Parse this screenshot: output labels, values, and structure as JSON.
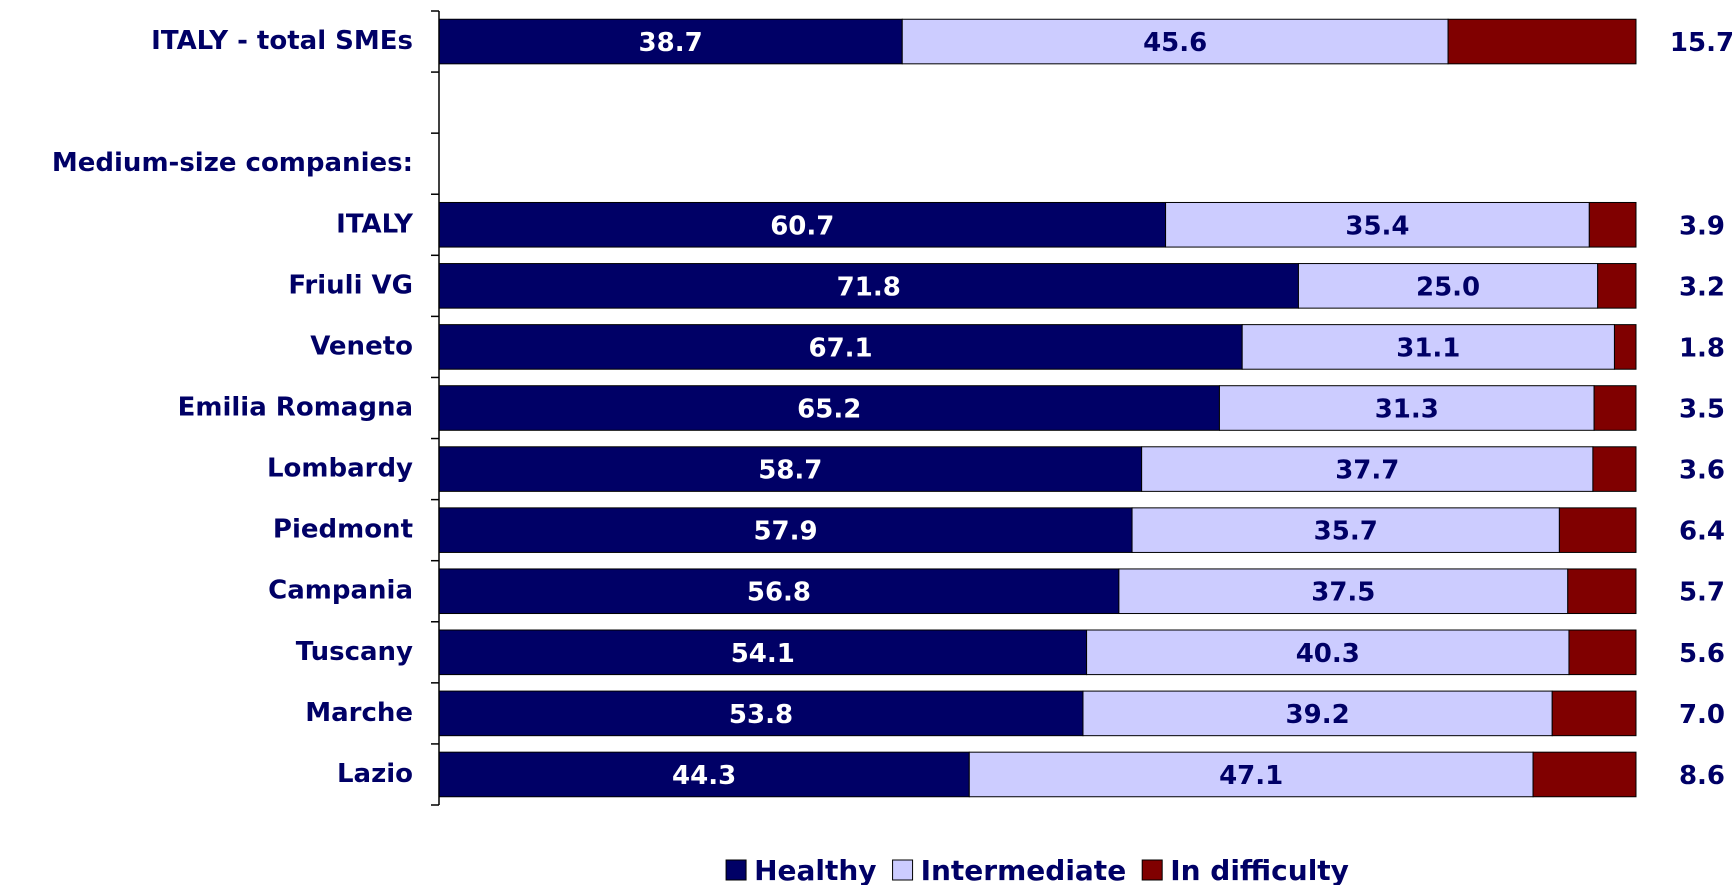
{
  "chart_data": {
    "type": "stacked_barh",
    "categories": [
      "ITALY - total SMEs",
      null,
      "Medium-size companies:",
      "ITALY",
      "Friuli VG",
      "Veneto",
      "Emilia Romagna",
      "Lombardy",
      "Piedmont",
      "Campania",
      "Tuscany",
      "Marche",
      "Lazio"
    ],
    "series": [
      {
        "name": "Healthy",
        "color": "#000066",
        "values": [
          38.7,
          null,
          null,
          60.7,
          71.8,
          67.1,
          65.2,
          58.7,
          57.9,
          56.8,
          54.1,
          53.8,
          44.3
        ]
      },
      {
        "name": "Intermediate",
        "color": "#ccccff",
        "values": [
          45.6,
          null,
          null,
          35.4,
          25.0,
          31.1,
          31.3,
          37.7,
          35.7,
          37.5,
          40.3,
          39.2,
          47.1
        ],
        "value_labels": [
          "45.6",
          null,
          null,
          "35.4",
          "25.0",
          "31.1",
          "31.3",
          "37.7",
          "35.7",
          "37.5",
          "40.3",
          "39.2",
          "47.1"
        ]
      },
      {
        "name": "In difficulty",
        "color": "#800000",
        "values": [
          15.7,
          null,
          null,
          3.9,
          3.2,
          1.8,
          3.5,
          3.6,
          6.4,
          5.7,
          5.6,
          7.0,
          8.6
        ],
        "value_labels": [
          "15.7",
          null,
          null,
          "3.9",
          "3.2",
          "1.8",
          "3.5",
          "3.6",
          "6.4",
          "5.7",
          "5.6",
          "7.0",
          "8.6"
        ]
      }
    ],
    "xlim": [
      0,
      100
    ],
    "legend": "bottom"
  }
}
